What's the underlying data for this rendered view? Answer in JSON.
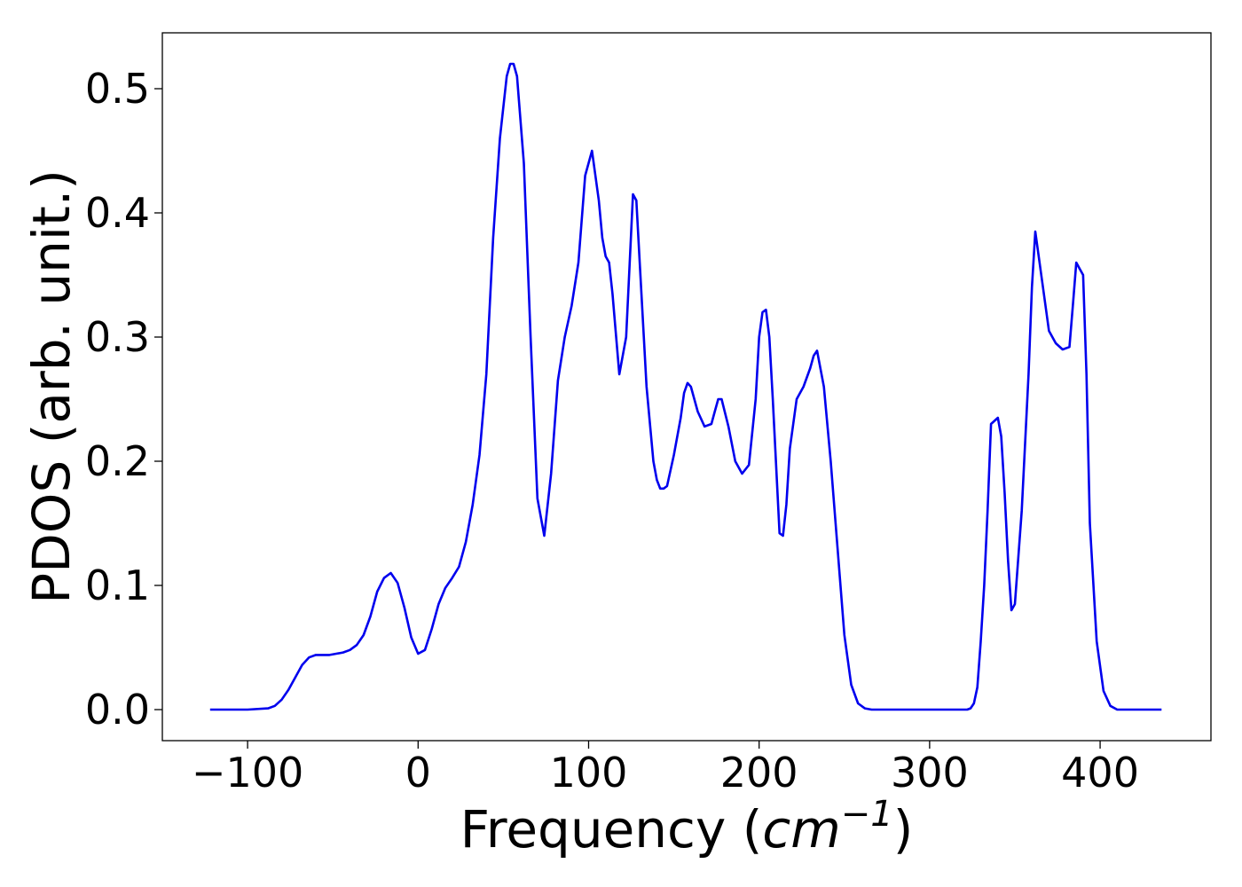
{
  "chart_data": {
    "type": "line",
    "title": "",
    "xlabel": "Frequency (",
    "xlabel_var": "cm",
    "xlabel_sup": "−1",
    "xlabel_close": ")",
    "ylabel": "PDOS (arb. unit.)",
    "xlim": [
      -150,
      465
    ],
    "ylim": [
      -0.025,
      0.545
    ],
    "grid": false,
    "legend": "none",
    "xticks": [
      {
        "value": -100,
        "label": "−100"
      },
      {
        "value": 0,
        "label": "0"
      },
      {
        "value": 100,
        "label": "100"
      },
      {
        "value": 200,
        "label": "200"
      },
      {
        "value": 300,
        "label": "300"
      },
      {
        "value": 400,
        "label": "400"
      }
    ],
    "yticks": [
      {
        "value": 0.0,
        "label": "0.0"
      },
      {
        "value": 0.1,
        "label": "0.1"
      },
      {
        "value": 0.2,
        "label": "0.2"
      },
      {
        "value": 0.3,
        "label": "0.3"
      },
      {
        "value": 0.4,
        "label": "0.4"
      },
      {
        "value": 0.5,
        "label": "0.5"
      }
    ],
    "series": [
      {
        "color": "#0000ee",
        "x": [
          -122,
          -100,
          -88,
          -84,
          -80,
          -76,
          -72,
          -68,
          -64,
          -60,
          -56,
          -52,
          -48,
          -44,
          -40,
          -36,
          -32,
          -28,
          -24,
          -20,
          -16,
          -12,
          -8,
          -4,
          0,
          4,
          8,
          12,
          16,
          20,
          24,
          28,
          32,
          36,
          40,
          44,
          48,
          52,
          54,
          56,
          58,
          62,
          66,
          70,
          74,
          78,
          82,
          86,
          90,
          94,
          98,
          102,
          106,
          108,
          110,
          112,
          114,
          118,
          122,
          126,
          128,
          130,
          134,
          138,
          140,
          142,
          144,
          146,
          150,
          154,
          156,
          158,
          160,
          164,
          168,
          172,
          174,
          176,
          178,
          182,
          186,
          190,
          194,
          198,
          200,
          202,
          204,
          206,
          208,
          212,
          214,
          216,
          218,
          222,
          226,
          230,
          232,
          234,
          238,
          242,
          246,
          250,
          254,
          258,
          262,
          266,
          270,
          280,
          320,
          322,
          324,
          326,
          328,
          330,
          332,
          334,
          336,
          340,
          342,
          344,
          346,
          348,
          350,
          354,
          358,
          360,
          362,
          366,
          370,
          374,
          378,
          382,
          384,
          386,
          388,
          390,
          392,
          394,
          398,
          402,
          406,
          410,
          436
        ],
        "y": [
          0.0,
          0.0,
          0.001,
          0.003,
          0.008,
          0.016,
          0.026,
          0.036,
          0.042,
          0.044,
          0.044,
          0.044,
          0.045,
          0.046,
          0.048,
          0.052,
          0.06,
          0.075,
          0.095,
          0.106,
          0.11,
          0.102,
          0.082,
          0.058,
          0.045,
          0.048,
          0.065,
          0.085,
          0.098,
          0.106,
          0.115,
          0.135,
          0.165,
          0.205,
          0.27,
          0.38,
          0.46,
          0.51,
          0.52,
          0.52,
          0.51,
          0.44,
          0.3,
          0.17,
          0.14,
          0.19,
          0.265,
          0.3,
          0.325,
          0.36,
          0.43,
          0.45,
          0.41,
          0.38,
          0.365,
          0.36,
          0.335,
          0.27,
          0.3,
          0.415,
          0.41,
          0.36,
          0.26,
          0.2,
          0.185,
          0.178,
          0.178,
          0.18,
          0.205,
          0.235,
          0.255,
          0.263,
          0.26,
          0.24,
          0.228,
          0.23,
          0.24,
          0.25,
          0.25,
          0.228,
          0.2,
          0.19,
          0.197,
          0.25,
          0.3,
          0.32,
          0.322,
          0.3,
          0.25,
          0.142,
          0.14,
          0.165,
          0.21,
          0.25,
          0.26,
          0.275,
          0.285,
          0.289,
          0.26,
          0.2,
          0.13,
          0.06,
          0.02,
          0.005,
          0.001,
          0.0,
          0.0,
          0.0,
          0.0,
          0.0,
          0.001,
          0.005,
          0.018,
          0.055,
          0.1,
          0.16,
          0.23,
          0.235,
          0.22,
          0.175,
          0.12,
          0.08,
          0.085,
          0.16,
          0.27,
          0.34,
          0.385,
          0.345,
          0.305,
          0.295,
          0.29,
          0.292,
          0.325,
          0.36,
          0.355,
          0.35,
          0.27,
          0.15,
          0.055,
          0.015,
          0.003,
          0.0,
          0.0
        ]
      }
    ]
  }
}
